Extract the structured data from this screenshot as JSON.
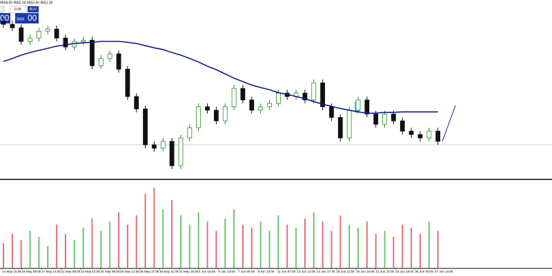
{
  "chart_data": {
    "type": "candlestick",
    "header": "9558.00 9582.00 9553.50 9561.00",
    "lot": "0.05",
    "buy_label": "BUY",
    "sell_big": "00",
    "buy_small": "9568",
    "buy_big": "00",
    "ylim": [
      9480,
      9900
    ],
    "up_color": "#1f8f1f",
    "down_color": "#111111",
    "ma_color": "#0b1a8c",
    "price_line": 9561,
    "open": [
      9850,
      9843,
      9835,
      9803,
      9811,
      9827,
      9832,
      9811,
      9790,
      9803,
      9806,
      9746,
      9763,
      9774,
      9738,
      9674,
      9645,
      9561,
      9553,
      9569,
      9512,
      9577,
      9601,
      9650,
      9642,
      9617,
      9650,
      9693,
      9666,
      9642,
      9650,
      9658,
      9682,
      9674,
      9682,
      9666,
      9706,
      9650,
      9625,
      9577,
      9642,
      9666,
      9633,
      9609,
      9633,
      9617,
      9593,
      9585,
      9577,
      9593
    ],
    "high": [
      9858,
      9851,
      9843,
      9819,
      9835,
      9840,
      9840,
      9819,
      9811,
      9814,
      9814,
      9771,
      9782,
      9782,
      9746,
      9682,
      9653,
      9569,
      9577,
      9577,
      9585,
      9609,
      9658,
      9658,
      9650,
      9658,
      9701,
      9701,
      9674,
      9658,
      9666,
      9690,
      9690,
      9690,
      9690,
      9714,
      9714,
      9658,
      9633,
      9650,
      9674,
      9674,
      9641,
      9641,
      9641,
      9625,
      9601,
      9593,
      9601,
      9601
    ],
    "low": [
      9835,
      9827,
      9795,
      9795,
      9803,
      9819,
      9803,
      9782,
      9782,
      9795,
      9738,
      9738,
      9755,
      9730,
      9666,
      9637,
      9553,
      9545,
      9545,
      9504,
      9504,
      9569,
      9593,
      9634,
      9609,
      9609,
      9642,
      9658,
      9634,
      9634,
      9642,
      9650,
      9666,
      9666,
      9658,
      9658,
      9642,
      9617,
      9569,
      9569,
      9634,
      9625,
      9601,
      9601,
      9609,
      9585,
      9577,
      9569,
      9569,
      9561
    ],
    "close": [
      9843,
      9835,
      9803,
      9811,
      9827,
      9832,
      9811,
      9790,
      9803,
      9806,
      9746,
      9763,
      9774,
      9738,
      9674,
      9645,
      9561,
      9553,
      9569,
      9512,
      9577,
      9601,
      9650,
      9642,
      9617,
      9650,
      9693,
      9666,
      9642,
      9650,
      9658,
      9682,
      9674,
      9682,
      9666,
      9706,
      9650,
      9625,
      9577,
      9642,
      9666,
      9633,
      9609,
      9633,
      9617,
      9593,
      9585,
      9577,
      9593,
      9569
    ],
    "ma": [
      9756,
      9763,
      9771,
      9777,
      9782,
      9787,
      9792,
      9795,
      9798,
      9800,
      9801,
      9803,
      9803,
      9803,
      9801,
      9798,
      9793,
      9788,
      9784,
      9777,
      9771,
      9763,
      9755,
      9745,
      9737,
      9727,
      9717,
      9709,
      9701,
      9695,
      9690,
      9683,
      9679,
      9674,
      9669,
      9662,
      9656,
      9651,
      9646,
      9642,
      9638,
      9635,
      9635,
      9637,
      9637,
      9638,
      9638,
      9638,
      9638,
      9638
    ],
    "volume": [
      40,
      55,
      45,
      60,
      50,
      35,
      70,
      55,
      45,
      65,
      80,
      60,
      75,
      90,
      70,
      85,
      120,
      130,
      95,
      110,
      85,
      70,
      90,
      75,
      60,
      80,
      95,
      70,
      65,
      75,
      60,
      85,
      70,
      65,
      80,
      90,
      75,
      60,
      85,
      70,
      65,
      75,
      55,
      60,
      50,
      70,
      65,
      55,
      75,
      60
    ],
    "vlim": [
      0,
      140
    ],
    "vol_up_color": "#6cc46c",
    "vol_down_color": "#e07070",
    "xlabels": [
      "14 May 15:05",
      "16 May 09:05",
      "17 May 14:05",
      "21 May 08:05",
      "22 May 13:05",
      "24 May 09:05",
      "25 May 12:05",
      "28 May 17:05",
      "30 May 11:05",
      "31 May 16:05",
      "4 Jun 16:05",
      "5 Jun 13:05",
      "7 Jun 09:05",
      "8 Jun 14:05",
      "11 Jun 07:05",
      "13 Jun 12:05",
      "14 Jun 17:05",
      "18 Jun 11:05",
      "19 Jun 16:05",
      "21 Jun 10:05",
      "22 Jun 15:05",
      "26 Jun 09:05",
      "27 Jun 14:05"
    ]
  }
}
